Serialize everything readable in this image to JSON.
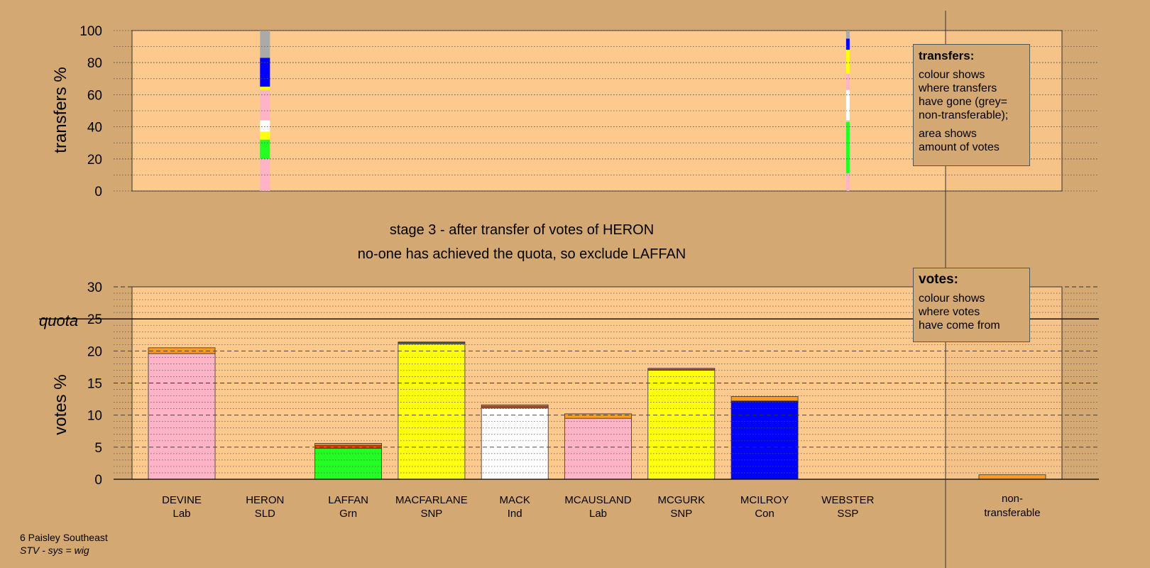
{
  "stage_line1": "stage 3 - after transfer of votes of HERON",
  "stage_line2": "no-one has achieved the quota, so exclude LAFFAN",
  "footer": {
    "constituency": "6 Paisley Southeast",
    "system": "STV - sys = wig"
  },
  "legend_transfers": {
    "title": "transfers:",
    "text1_lines": [
      "colour shows",
      "where transfers",
      "have gone (grey=",
      "non-transferable);"
    ],
    "text2_lines": [
      "area shows",
      "amount of votes"
    ]
  },
  "legend_votes": {
    "title": "votes:",
    "text_lines": [
      "colour shows",
      "where votes",
      "have come from"
    ]
  },
  "colors": {
    "background": "#d4a872",
    "plot_area": "#fdc98c",
    "Lab": "#ffb3c6",
    "SNP": "#ffff10",
    "Grn": "#22ff22",
    "Ind": "#ffffff",
    "Con": "#0000ff",
    "SLD": "#ffd700",
    "non-transferable": "#aaaaaa",
    "transfer_top": "#ff9b1f"
  },
  "chart_data": [
    {
      "type": "bar",
      "name": "transfers",
      "ylabel": "transfers %",
      "yticks": [
        "0",
        "20",
        "40",
        "60",
        "80",
        "100"
      ],
      "ylim": [
        0,
        100
      ],
      "grid": "dotted",
      "columns": [
        {
          "candidate_index": 1,
          "segments": [
            {
              "color": "Lab",
              "from": 0,
              "to": 20
            },
            {
              "color": "Grn",
              "from": 20,
              "to": 32
            },
            {
              "color": "SNP",
              "from": 32,
              "to": 37
            },
            {
              "color": "Ind",
              "from": 37,
              "to": 44
            },
            {
              "color": "Lab",
              "from": 44,
              "to": 63
            },
            {
              "color": "SNP",
              "from": 63,
              "to": 65
            },
            {
              "color": "Con",
              "from": 65,
              "to": 83
            },
            {
              "color": "non-transferable",
              "from": 83,
              "to": 100
            }
          ]
        },
        {
          "candidate_index": 8,
          "segments": [
            {
              "color": "Lab",
              "from": 0,
              "to": 11
            },
            {
              "color": "Grn",
              "from": 11,
              "to": 43
            },
            {
              "color": "Lab",
              "from": 43,
              "to": 44
            },
            {
              "color": "Ind",
              "from": 44,
              "to": 63
            },
            {
              "color": "Lab",
              "from": 63,
              "to": 73
            },
            {
              "color": "SNP",
              "from": 73,
              "to": 88
            },
            {
              "color": "Con",
              "from": 88,
              "to": 95
            },
            {
              "color": "non-transferable",
              "from": 95,
              "to": 100
            }
          ]
        }
      ]
    },
    {
      "type": "bar",
      "name": "votes",
      "ylabel": "votes %",
      "yticks": [
        "0",
        "5",
        "10",
        "15",
        "20",
        "25",
        "30"
      ],
      "ylim": [
        0,
        30
      ],
      "quota": 25,
      "quota_label": "quota",
      "grid": "dashed",
      "categories": [
        {
          "name": "DEVINE",
          "party": "Lab"
        },
        {
          "name": "HERON",
          "party": "SLD"
        },
        {
          "name": "LAFFAN",
          "party": "Grn"
        },
        {
          "name": "MACFARLANE",
          "party": "SNP"
        },
        {
          "name": "MACK",
          "party": "Ind"
        },
        {
          "name": "MCAUSLAND",
          "party": "Lab"
        },
        {
          "name": "MCGURK",
          "party": "SNP"
        },
        {
          "name": "MCILROY",
          "party": "Con"
        },
        {
          "name": "WEBSTER",
          "party": "SSP"
        }
      ],
      "nontransferable_label": [
        "non-",
        "transferable"
      ],
      "values_first": [
        19.6,
        0,
        4.8,
        21.1,
        11.1,
        9.5,
        17.0,
        12.2,
        0
      ],
      "values_total": [
        20.5,
        0,
        5.6,
        21.4,
        11.6,
        10.2,
        17.3,
        12.9,
        0
      ],
      "transfer_layers": [
        [
          0.0,
          0,
          0.5,
          0.2,
          0.3,
          0.0,
          0.15,
          0.0,
          0
        ],
        [
          0.9,
          0,
          0.3,
          0.1,
          0.2,
          0.7,
          0.15,
          0.7,
          0
        ]
      ],
      "nontransferable": 0.7
    }
  ]
}
